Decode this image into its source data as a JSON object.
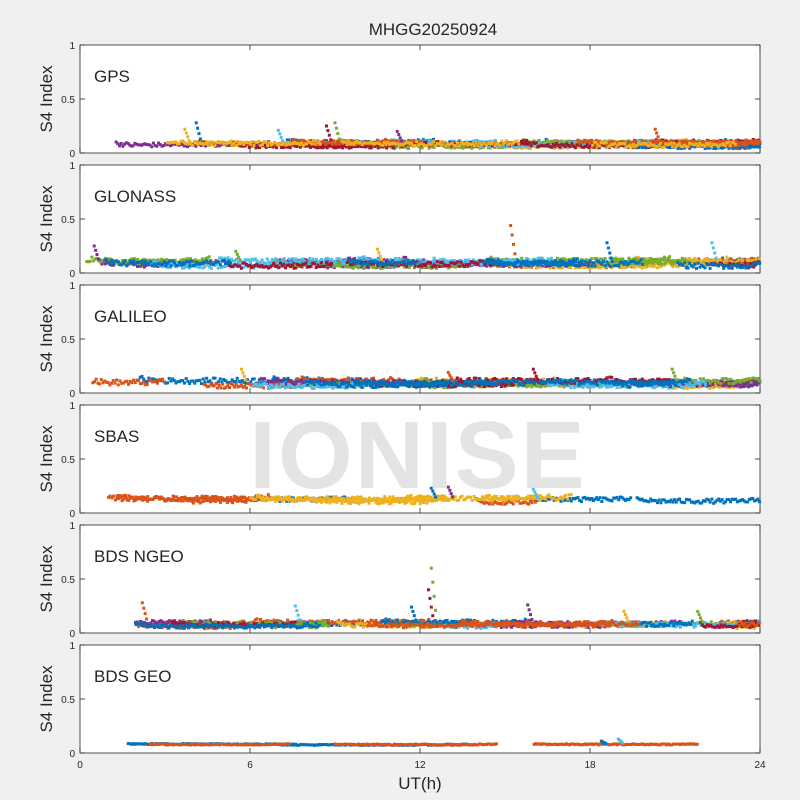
{
  "chart_data": {
    "type": "scatter",
    "title": "MHGG20250924",
    "xlabel": "UT(h)",
    "xlim": [
      0,
      24
    ],
    "xticks": [
      0,
      6,
      12,
      18,
      24
    ],
    "xtick_labels": [
      "0",
      "6",
      "12",
      "18",
      "24"
    ],
    "ylabel": "S4 Index",
    "ylim": [
      0,
      1
    ],
    "yticks": [
      0,
      0.5,
      1
    ],
    "ytick_labels": [
      "0",
      "0.5",
      "1"
    ],
    "watermark": "IONISE",
    "palette": [
      "#0072bd",
      "#d95319",
      "#edb120",
      "#7e2f8e",
      "#77ac30",
      "#4dbeee",
      "#a2142f"
    ],
    "panels": [
      {
        "name": "GPS",
        "baseline": 0.08,
        "spread": 0.04,
        "satellites": 10,
        "spikes": [
          [
            4.1,
            0.28
          ],
          [
            3.7,
            0.22
          ],
          [
            9.0,
            0.28
          ],
          [
            8.7,
            0.25
          ],
          [
            20.3,
            0.22
          ],
          [
            11.2,
            0.2
          ],
          [
            7.0,
            0.21
          ]
        ]
      },
      {
        "name": "GLONASS",
        "baseline": 0.09,
        "spread": 0.05,
        "satellites": 8,
        "spikes": [
          [
            15.2,
            0.44
          ],
          [
            0.5,
            0.25
          ],
          [
            22.3,
            0.28
          ],
          [
            18.6,
            0.28
          ],
          [
            10.5,
            0.22
          ],
          [
            5.5,
            0.2
          ]
        ]
      },
      {
        "name": "GALILEO",
        "baseline": 0.09,
        "spread": 0.05,
        "satellites": 8,
        "spikes": [
          [
            5.7,
            0.22
          ],
          [
            20.9,
            0.22
          ],
          [
            16.0,
            0.22
          ],
          [
            13.0,
            0.19
          ]
        ]
      },
      {
        "name": "SBAS",
        "baseline": 0.12,
        "spread": 0.04,
        "satellites": 3,
        "spikes": [
          [
            13.0,
            0.24
          ],
          [
            16.0,
            0.22
          ],
          [
            12.4,
            0.23
          ]
        ]
      },
      {
        "name": "BDS NGEO",
        "baseline": 0.08,
        "spread": 0.04,
        "satellites": 9,
        "spikes": [
          [
            12.4,
            0.6
          ],
          [
            12.3,
            0.4
          ],
          [
            2.2,
            0.28
          ],
          [
            15.8,
            0.26
          ],
          [
            7.6,
            0.25
          ],
          [
            11.7,
            0.24
          ],
          [
            19.2,
            0.2
          ],
          [
            21.8,
            0.2
          ]
        ]
      },
      {
        "name": "BDS GEO",
        "baseline": 0.08,
        "spread": 0.01,
        "satellites": 2,
        "spikes": [
          [
            19.0,
            0.13
          ],
          [
            18.4,
            0.11
          ]
        ]
      }
    ]
  }
}
